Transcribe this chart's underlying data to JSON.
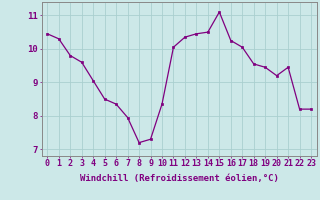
{
  "x": [
    0,
    1,
    2,
    3,
    4,
    5,
    6,
    7,
    8,
    9,
    10,
    11,
    12,
    13,
    14,
    15,
    16,
    17,
    18,
    19,
    20,
    21,
    22,
    23
  ],
  "y": [
    10.45,
    10.3,
    9.8,
    9.6,
    9.05,
    8.5,
    8.35,
    7.95,
    7.2,
    7.3,
    8.35,
    10.05,
    10.35,
    10.45,
    10.5,
    11.1,
    10.25,
    10.05,
    9.55,
    9.45,
    9.2,
    9.45,
    8.2,
    8.2
  ],
  "xlim": [
    -0.5,
    23.5
  ],
  "ylim": [
    6.8,
    11.4
  ],
  "yticks": [
    7,
    8,
    9,
    10,
    11
  ],
  "xticks": [
    0,
    1,
    2,
    3,
    4,
    5,
    6,
    7,
    8,
    9,
    10,
    11,
    12,
    13,
    14,
    15,
    16,
    17,
    18,
    19,
    20,
    21,
    22,
    23
  ],
  "xlabel": "Windchill (Refroidissement éolien,°C)",
  "line_color": "#800080",
  "marker_color": "#800080",
  "bg_color": "#cce8e8",
  "grid_color": "#aacfcf",
  "axis_color": "#888888",
  "label_color": "#800080",
  "tick_color": "#800080",
  "label_fontsize": 6.5,
  "tick_fontsize": 6.0
}
